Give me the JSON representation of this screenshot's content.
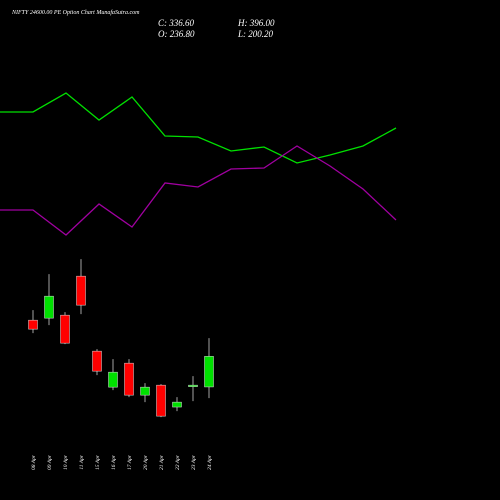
{
  "chart_data": [
    {
      "type": "line",
      "categories": [
        null,
        null,
        null,
        null,
        null,
        null,
        null,
        null,
        null,
        null,
        null,
        null,
        null
      ],
      "ylim": [
        0,
        200
      ],
      "series": [
        {
          "color": "#00e000",
          "values": [
            138,
            138,
            157,
            130,
            153,
            114,
            113,
            99,
            103,
            87,
            95,
            104,
            122
          ]
        },
        {
          "color": "#a000a0",
          "values": [
            40,
            40,
            15,
            46,
            23,
            67,
            63,
            81,
            82,
            104,
            84,
            61,
            30
          ]
        }
      ]
    },
    {
      "type": "candlestick",
      "title": "NIFTY 24600.00 PE Option Chart MunafaSutra.com",
      "annotations": [
        "C: 336.60",
        "H: 396.00",
        "O: 236.80",
        "L: 200.20"
      ],
      "categories": [
        "08 Apr",
        "09 Apr",
        "10 Apr",
        "11 Apr",
        "15 Apr",
        "16 Apr",
        "17 Apr",
        "20 Apr",
        "21 Apr",
        "22 Apr",
        "23 Apr",
        "24 Apr"
      ],
      "ylim": [
        0,
        700
      ],
      "up_color": "#00e000",
      "down_color": "#ff0000",
      "open": [
        454.7,
        461.3,
        471.0,
        598.3,
        353.6,
        236.1,
        314.4,
        210.0,
        242.6,
        171.2,
        239.4,
        236.8
      ],
      "high": [
        487.4,
        604.8,
        480.8,
        653.8,
        360.1,
        327.5,
        327.5,
        249.2,
        245.9,
        203.5,
        272.0,
        396.0
      ],
      "low": [
        412.3,
        438.4,
        376.4,
        474.3,
        275.3,
        226.3,
        203.5,
        187.2,
        138.2,
        157.8,
        190.4,
        200.2
      ],
      "close": [
        425.4,
        533.0,
        379.7,
        503.7,
        288.3,
        285.0,
        210.0,
        236.1,
        141.5,
        187.2,
        242.6,
        336.6
      ]
    }
  ]
}
